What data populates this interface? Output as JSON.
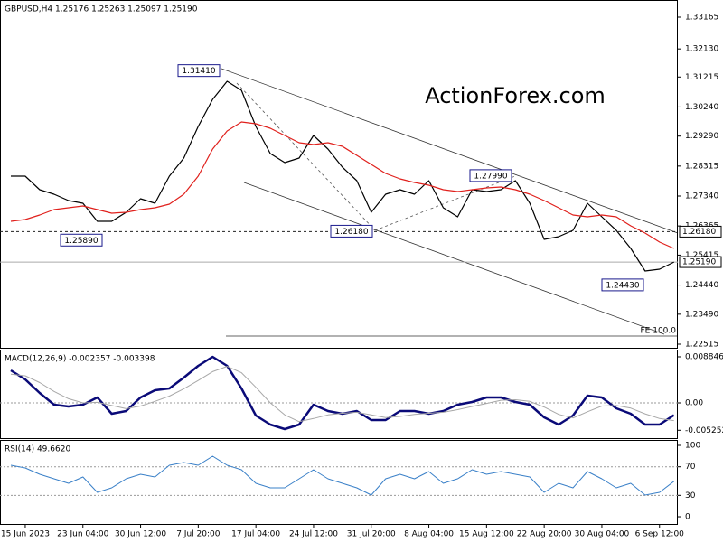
{
  "chart_data": [
    {
      "type": "line",
      "title": "GBPUSD,H4  1.25176 1.25263 1.25097 1.25190",
      "watermark": "ActionForex.com",
      "fe_label": "FE 100.0",
      "ylim": [
        1.22397,
        1.33724
      ],
      "yticks": [
        1.33165,
        {
          "value": 1.3213,
          "label": "1.32130"
        },
        1.31215,
        {
          "value": 1.3024,
          "label": "1.30240"
        },
        {
          "value": 1.2929,
          "label": "1.29290"
        },
        1.28315,
        {
          "value": 1.2734,
          "label": "1.27340"
        },
        1.26365,
        1.25415,
        {
          "value": 1.2444,
          "label": "1.24440"
        },
        {
          "value": 1.2349,
          "label": "1.23490"
        },
        1.22515
      ],
      "levels": [
        {
          "value": 1.2618,
          "label": "1.26180",
          "style": "dashed"
        },
        {
          "value": 1.2519,
          "label": "1.25190",
          "style": "solid"
        }
      ],
      "annotations": [
        {
          "value": 1.3141,
          "label": "1.31410"
        },
        {
          "value": 1.2589,
          "label": "1.25890"
        },
        {
          "value": 1.2618,
          "label": "1.26180"
        },
        {
          "value": 1.2799,
          "label": "1.27990"
        },
        {
          "value": 1.2443,
          "label": "1.24430"
        }
      ],
      "series": [
        {
          "color": "#000000",
          "values": [
            1.27987,
            1.27987,
            1.27546,
            1.27399,
            1.27193,
            1.27105,
            1.26516,
            1.26516,
            1.2681,
            1.27252,
            1.27105,
            1.27987,
            1.28575,
            1.29605,
            1.30488,
            1.31076,
            1.30782,
            1.29605,
            1.28723,
            1.28428,
            1.28575,
            1.29311,
            1.2887,
            1.28281,
            1.2784,
            1.2681,
            1.27399,
            1.27546,
            1.27399,
            1.2784,
            1.26957,
            1.26663,
            1.27546,
            1.27487,
            1.27546,
            1.2784,
            1.27105,
            1.25928,
            1.26016,
            1.26222,
            1.27105,
            1.26663,
            1.26222,
            1.25633,
            1.24898,
            1.24957,
            1.2519
          ]
        },
        {
          "color": "#e0201c",
          "values": [
            1.26516,
            1.26575,
            1.26722,
            1.26899,
            1.26957,
            1.27016,
            1.26899,
            1.26781,
            1.2681,
            1.26899,
            1.26957,
            1.27075,
            1.27399,
            1.27987,
            1.2887,
            1.29458,
            1.29752,
            1.29693,
            1.29546,
            1.29311,
            1.29076,
            1.29017,
            1.29076,
            1.28958,
            1.28664,
            1.2837,
            1.28075,
            1.27899,
            1.27781,
            1.27693,
            1.27546,
            1.27487,
            1.27546,
            1.27605,
            1.27634,
            1.27546,
            1.27399,
            1.27193,
            1.26957,
            1.26722,
            1.26663,
            1.26722,
            1.26663,
            1.26369,
            1.26134,
            1.2584,
            1.25633
          ]
        }
      ]
    },
    {
      "type": "line",
      "title": "MACD(12,26,9) -0.002357 -0.003398",
      "ylim": [
        -0.00676,
        0.01023
      ],
      "yticks": [
        0.008846,
        {
          "value": 0,
          "label": "0.00"
        },
        -0.005252
      ],
      "level_lines": [
        0
      ],
      "series": [
        {
          "color": "#0a0a78",
          "width": 2.5,
          "values": [
            0.006244,
            0.004509,
            0.001908,
            -0.000347,
            -0.000694,
            -0.000347,
            0.001041,
            -0.002081,
            -0.001561,
            0.001041,
            0.002428,
            0.002775,
            0.004856,
            0.007111,
            0.008846,
            0.007111,
            0.002775,
            -0.002428,
            -0.004162,
            -0.005029,
            -0.004162,
            -0.000347,
            -0.001561,
            -0.002081,
            -0.001561,
            -0.003295,
            -0.003295,
            -0.001561,
            -0.001561,
            -0.002081,
            -0.001561,
            -0.000347,
            0.000173,
            0.001041,
            0.001041,
            0.000173,
            -0.000347,
            -0.002775,
            -0.004162,
            -0.002428,
            0.001387,
            0.001041,
            -0.001041,
            -0.002081,
            -0.004162,
            -0.004162,
            -0.002357
          ]
        },
        {
          "color": "#a8a8a8",
          "width": 1,
          "values": [
            0.0055,
            0.0052,
            0.0039,
            0.0022,
            0.0008,
            0,
            0.0001,
            -0.0005,
            -0.0011,
            -0.0006,
            0.0003,
            0.0013,
            0.0027,
            0.0043,
            0.006,
            0.007,
            0.0058,
            0.003,
            0,
            -0.0023,
            -0.0036,
            -0.003,
            -0.0023,
            -0.002,
            -0.0018,
            -0.0023,
            -0.0028,
            -0.0026,
            -0.0022,
            -0.002,
            -0.0018,
            -0.0013,
            -0.0007,
            -0.0001,
            0.0005,
            0.0006,
            0.0003,
            -0.0008,
            -0.0022,
            -0.0029,
            -0.0017,
            -0.0006,
            -0.0005,
            -0.001,
            -0.0021,
            -0.003,
            -0.003398
          ]
        }
      ]
    },
    {
      "type": "line",
      "title": "RSI(14) 49.6620",
      "ylim": [
        -10.1,
        107.6
      ],
      "yticks": [
        100,
        70,
        30,
        0
      ],
      "level_lines": [
        70,
        30
      ],
      "categories": [
        null,
        "15 Jun 2023",
        null,
        null,
        null,
        "23 Jun 04:00",
        null,
        null,
        null,
        "30 Jun 12:00",
        null,
        null,
        null,
        "7 Jul 20:00",
        null,
        null,
        null,
        "17 Jul 04:00",
        null,
        null,
        null,
        "24 Jul 12:00",
        null,
        null,
        null,
        "31 Jul 20:00",
        null,
        null,
        null,
        "8 Aug 04:00",
        null,
        null,
        null,
        "15 Aug 12:00",
        null,
        null,
        null,
        "22 Aug 20:00",
        null,
        null,
        null,
        "30 Aug 04:00",
        null,
        null,
        null,
        "6 Sep 12:00",
        null
      ],
      "series": [
        {
          "color": "#3a80c8",
          "width": 1,
          "values": [
            72.2,
            68.4,
            59.5,
            53.2,
            46.8,
            55.7,
            34.2,
            40.5,
            53.2,
            59.5,
            55.7,
            72.2,
            75.9,
            72.2,
            84.8,
            72.2,
            65.8,
            46.8,
            40.5,
            40.5,
            53.2,
            65.8,
            53.2,
            46.8,
            40.5,
            30.4,
            53.2,
            59.5,
            53.2,
            63.3,
            46.8,
            53.2,
            65.8,
            59.5,
            63.3,
            59.5,
            55.7,
            34.2,
            46.8,
            40.5,
            63.3,
            53.2,
            40.5,
            46.8,
            30.4,
            34.2,
            49.662
          ]
        }
      ]
    }
  ]
}
